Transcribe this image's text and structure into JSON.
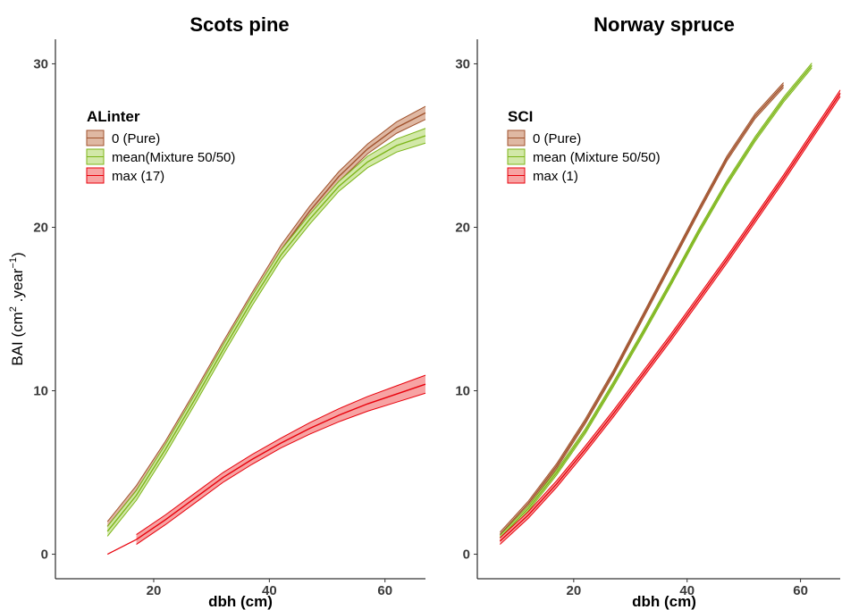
{
  "chart_data": [
    {
      "type": "line",
      "title": "Scots pine",
      "xlabel": "dbh (cm)",
      "ylabel_prefix": "BAI (cm",
      "ylabel_sup1": "2",
      "ylabel_mid": " .year",
      "ylabel_sup2": "−1",
      "ylabel_suffix": ")",
      "xlim": [
        3,
        67
      ],
      "ylim": [
        -1.5,
        31.5
      ],
      "xticks": [
        20,
        40,
        60
      ],
      "yticks": [
        0,
        10,
        20,
        30
      ],
      "grid": false,
      "legend": {
        "title": "ALinter",
        "position": "top-left"
      },
      "series": [
        {
          "name": "0 (Pure)",
          "color": "#a0522d",
          "fill": "#dfb8a3",
          "x": [
            12,
            17,
            22,
            27,
            32,
            37,
            42,
            47,
            52,
            57,
            62,
            67
          ],
          "y": [
            1.7,
            3.9,
            6.6,
            9.6,
            12.7,
            15.7,
            18.6,
            21.0,
            23.1,
            24.8,
            26.1,
            27.0
          ],
          "band": [
            0.3,
            0.3,
            0.3,
            0.3,
            0.3,
            0.3,
            0.3,
            0.3,
            0.3,
            0.3,
            0.35,
            0.4
          ]
        },
        {
          "name": "mean(Mixture 50/50)",
          "color": "#7cb518",
          "fill": "#d2e8a8",
          "x": [
            12,
            17,
            22,
            27,
            32,
            37,
            42,
            47,
            52,
            57,
            62,
            67
          ],
          "y": [
            1.4,
            3.6,
            6.4,
            9.4,
            12.5,
            15.5,
            18.3,
            20.5,
            22.5,
            24.0,
            25.0,
            25.6
          ],
          "band": [
            0.3,
            0.3,
            0.3,
            0.3,
            0.3,
            0.3,
            0.3,
            0.3,
            0.3,
            0.35,
            0.4,
            0.45
          ]
        },
        {
          "name": "max (17)",
          "color": "#e8000b",
          "fill": "#f7a3a3",
          "x": [
            17,
            22,
            27,
            32,
            37,
            42,
            47,
            52,
            57,
            62,
            67
          ],
          "y": [
            0.9,
            2.1,
            3.4,
            4.7,
            5.8,
            6.8,
            7.7,
            8.5,
            9.2,
            9.8,
            10.4
          ],
          "band": [
            0.3,
            0.3,
            0.3,
            0.3,
            0.3,
            0.3,
            0.35,
            0.4,
            0.45,
            0.5,
            0.55
          ],
          "extension": {
            "x": [
              12,
              17
            ],
            "y": [
              0.0,
              0.9
            ]
          }
        }
      ]
    },
    {
      "type": "line",
      "title": "Norway spruce",
      "xlabel": "dbh (cm)",
      "xlim": [
        3,
        67
      ],
      "ylim": [
        -1.5,
        31.5
      ],
      "xticks": [
        20,
        40,
        60
      ],
      "yticks": [
        0,
        10,
        20,
        30
      ],
      "grid": false,
      "legend": {
        "title": "SCI",
        "position": "top-left"
      },
      "series": [
        {
          "name": "0 (Pure)",
          "color": "#a0522d",
          "fill": "#dfb8a3",
          "x": [
            7,
            12,
            17,
            22,
            27,
            32,
            37,
            42,
            47,
            52,
            57
          ],
          "y": [
            1.2,
            3.1,
            5.4,
            8.1,
            11.1,
            14.4,
            17.7,
            21.0,
            24.2,
            26.8,
            28.7
          ],
          "band": [
            0.15,
            0.15,
            0.15,
            0.15,
            0.15,
            0.15,
            0.15,
            0.15,
            0.15,
            0.15,
            0.15
          ]
        },
        {
          "name": "mean (Mixture 50/50)",
          "color": "#7cb518",
          "fill": "#d2e8a8",
          "x": [
            7,
            12,
            17,
            22,
            27,
            32,
            37,
            42,
            47,
            52,
            57,
            62
          ],
          "y": [
            1.0,
            2.8,
            5.0,
            7.5,
            10.4,
            13.4,
            16.5,
            19.7,
            22.7,
            25.4,
            27.8,
            29.9
          ],
          "band": [
            0.15,
            0.15,
            0.15,
            0.15,
            0.15,
            0.15,
            0.15,
            0.15,
            0.15,
            0.15,
            0.15,
            0.15
          ]
        },
        {
          "name": "max (1)",
          "color": "#e8000b",
          "fill": "#f7a3a3",
          "x": [
            7,
            12,
            17,
            22,
            27,
            32,
            37,
            42,
            47,
            52,
            57,
            62,
            67
          ],
          "y": [
            0.8,
            2.4,
            4.3,
            6.4,
            8.6,
            10.9,
            13.2,
            15.6,
            18.0,
            20.5,
            23.0,
            25.6,
            28.2
          ],
          "band": [
            0.2,
            0.2,
            0.2,
            0.2,
            0.2,
            0.2,
            0.2,
            0.2,
            0.2,
            0.2,
            0.2,
            0.2,
            0.2
          ]
        }
      ]
    }
  ]
}
